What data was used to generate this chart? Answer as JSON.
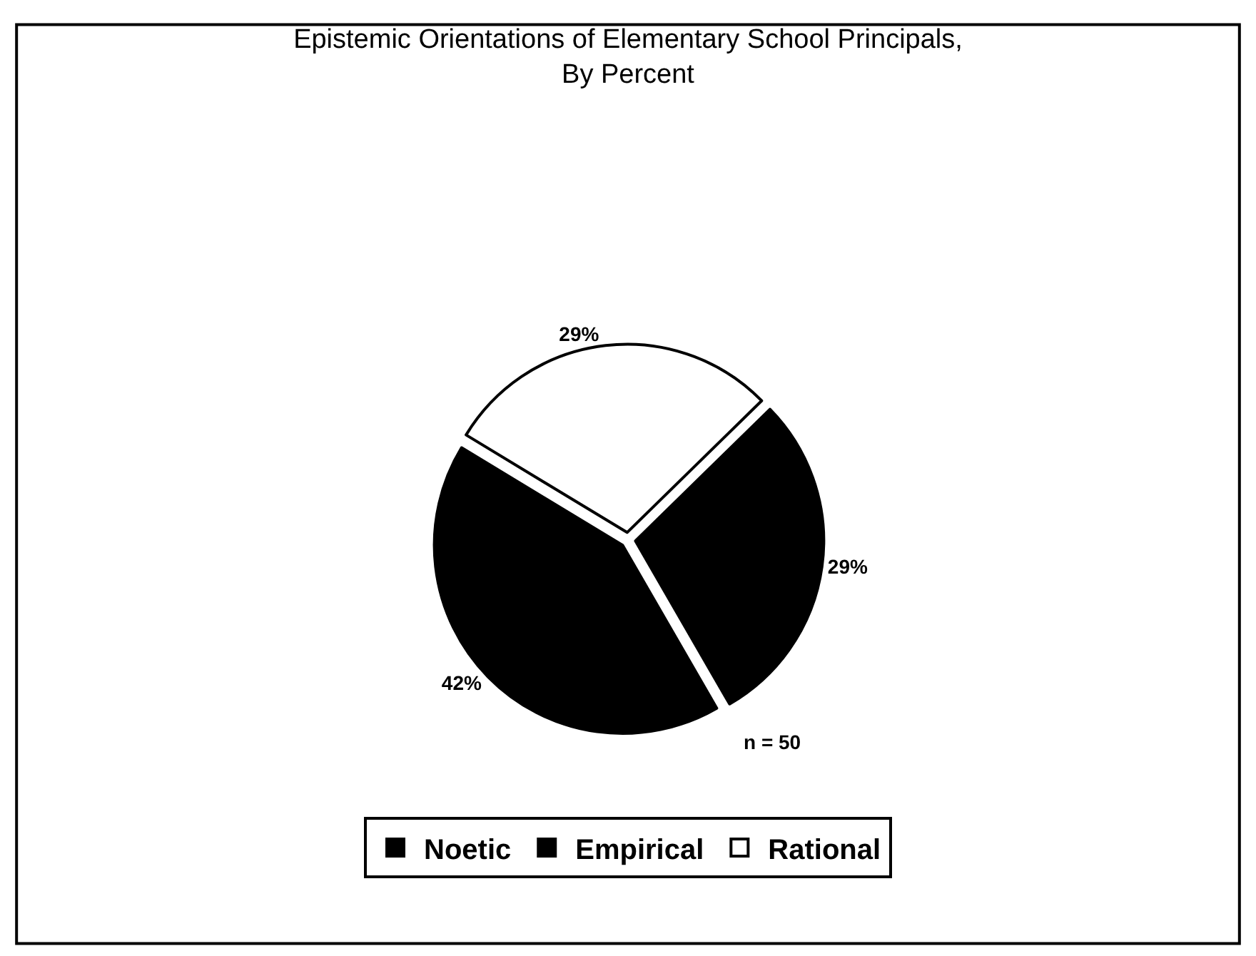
{
  "chart_data": {
    "type": "pie",
    "title": "Epistemic Orientations of Elementary School Principals,\nBy Percent",
    "categories": [
      "Noetic",
      "Empirical",
      "Rational"
    ],
    "values": [
      42,
      29,
      29
    ],
    "value_labels": [
      "42%",
      "29%",
      "29%"
    ],
    "colors": [
      "#000000",
      "#000000",
      "#ffffff"
    ],
    "annotations": [
      "n = 50"
    ],
    "legend": "bottom"
  }
}
